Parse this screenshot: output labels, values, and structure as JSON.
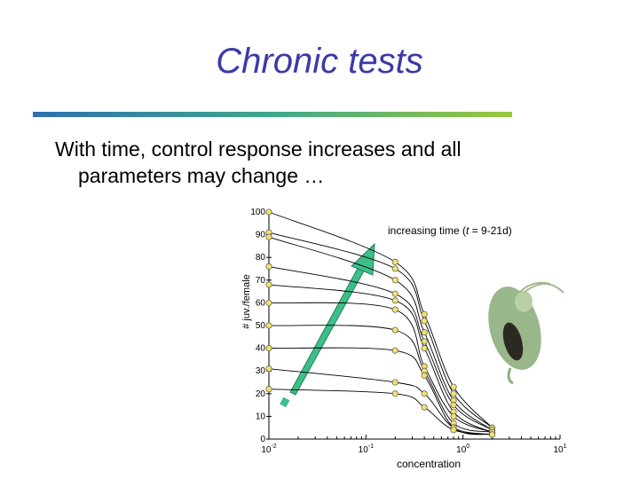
{
  "slide": {
    "title": "Chronic tests",
    "bullet_lines": [
      "With time, control response increases and all",
      "parameters may change …"
    ]
  },
  "chart_data": {
    "type": "line",
    "ylabel": "# juv./female",
    "xlabel": "concentration",
    "annotation_parts": [
      "increasing time (",
      "t",
      " = 9-21d)"
    ],
    "x": [
      0.01,
      0.2,
      0.4,
      0.8,
      2
    ],
    "xscale": "log",
    "xlim": [
      0.01,
      10
    ],
    "xticks": [
      {
        "value": 0.01,
        "label": "10",
        "exponent": "-2"
      },
      {
        "value": 0.1,
        "label": "10",
        "exponent": "-1"
      },
      {
        "value": 1,
        "label": "10",
        "exponent": "0"
      },
      {
        "value": 10,
        "label": "10",
        "exponent": "1"
      }
    ],
    "ylim": [
      0,
      100
    ],
    "yticks": [
      0,
      10,
      20,
      30,
      40,
      50,
      60,
      70,
      80,
      90,
      100
    ],
    "line_color": "#000000",
    "marker_color": "#f2e36b",
    "series": [
      {
        "values": [
          100,
          78,
          55,
          23,
          5
        ]
      },
      {
        "values": [
          91,
          75,
          52,
          20,
          5
        ]
      },
      {
        "values": [
          89,
          70,
          47,
          17,
          4
        ]
      },
      {
        "values": [
          76,
          64,
          43,
          15,
          4
        ]
      },
      {
        "values": [
          68,
          61,
          40,
          12,
          3
        ]
      },
      {
        "values": [
          60,
          57,
          32,
          10,
          3
        ]
      },
      {
        "values": [
          50,
          48,
          30,
          7,
          3
        ]
      },
      {
        "values": [
          40,
          39,
          28,
          5,
          2
        ]
      },
      {
        "values": [
          31,
          25,
          20,
          5,
          2
        ]
      },
      {
        "values": [
          22,
          20,
          14,
          4,
          2
        ]
      }
    ]
  }
}
